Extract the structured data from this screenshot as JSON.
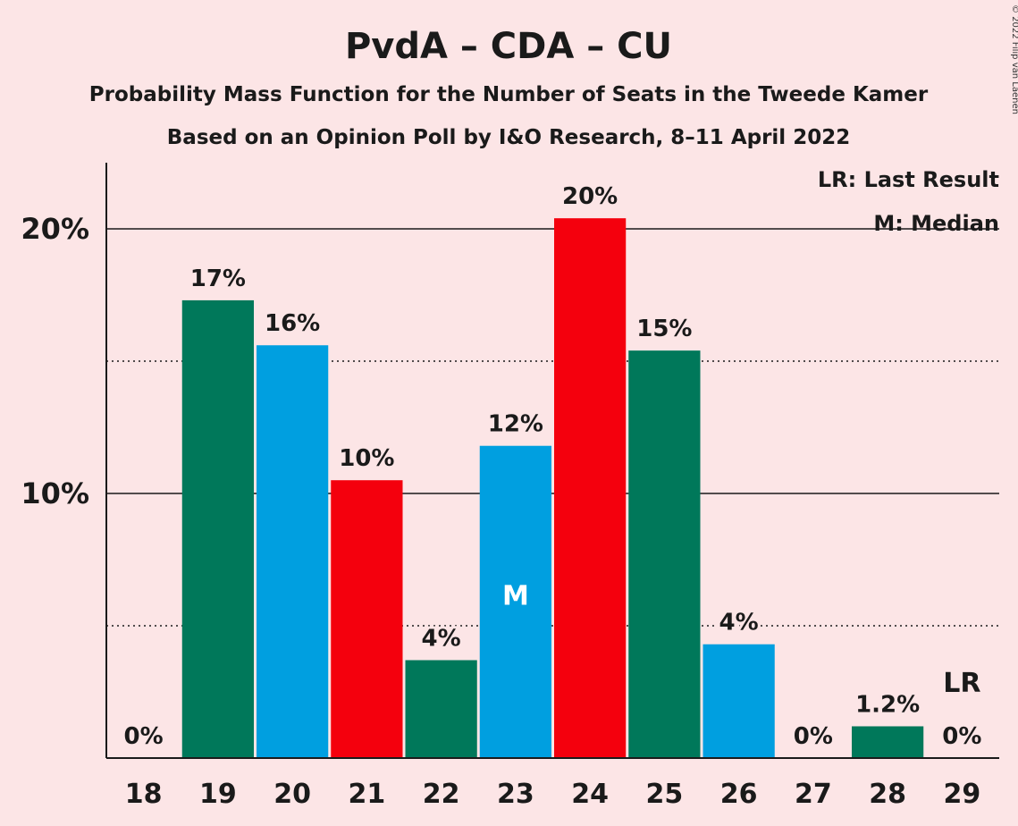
{
  "title": "PvdA – CDA – CU",
  "subtitle1": "Probability Mass Function for the Number of Seats in the Tweede Kamer",
  "subtitle2": "Based on an Opinion Poll by I&O Research, 8–11 April 2022",
  "copyright": "© 2022 Filip van Laenen",
  "legend": {
    "lr": "LR: Last Result",
    "median": "M: Median"
  },
  "markers": {
    "median_label": "M",
    "median_seat": 23,
    "lr_label": "LR",
    "lr_seat": 29
  },
  "colors": {
    "background": "#FCE5E6",
    "green": "#00785A",
    "blue": "#009FE0",
    "red": "#F4000D",
    "text": "#1a1a1a"
  },
  "chart_data": {
    "type": "bar",
    "categories": [
      18,
      19,
      20,
      21,
      22,
      23,
      24,
      25,
      26,
      27,
      28,
      29
    ],
    "values": [
      0,
      17.3,
      15.6,
      10.5,
      3.7,
      11.8,
      20.4,
      15.4,
      4.3,
      0,
      1.2,
      0
    ],
    "data_labels": [
      "0%",
      "17%",
      "16%",
      "10%",
      "4%",
      "12%",
      "20%",
      "15%",
      "4%",
      "0%",
      "1.2%",
      "0%"
    ],
    "bar_colors": [
      "green",
      "green",
      "blue",
      "red",
      "green",
      "blue",
      "red",
      "green",
      "blue",
      "green",
      "green",
      "green"
    ],
    "y_ticks": [
      {
        "value": 10,
        "label": "10%"
      },
      {
        "value": 20,
        "label": "20%"
      }
    ],
    "minor_gridlines": [
      5,
      15
    ],
    "ylim": [
      0,
      22.5
    ],
    "grid": true,
    "legend_position": "top-right"
  }
}
